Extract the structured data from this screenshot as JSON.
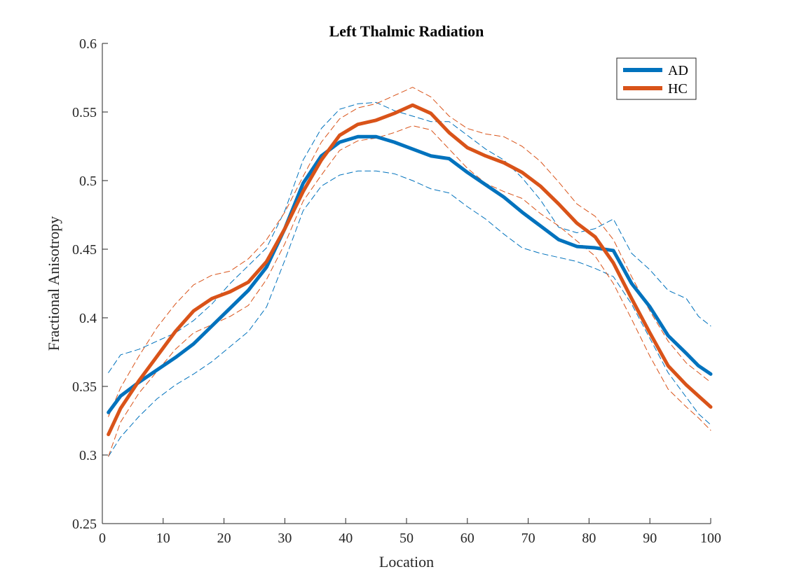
{
  "chart_data": {
    "type": "line",
    "title": "Left Thalmic Radiation",
    "xlabel": "Location",
    "ylabel": "Fractional Anisotropy",
    "xlim": [
      0,
      100
    ],
    "ylim": [
      0.25,
      0.6
    ],
    "xticks": [
      "0",
      "10",
      "20",
      "30",
      "40",
      "50",
      "60",
      "70",
      "80",
      "90",
      "100"
    ],
    "yticks": [
      "0.25",
      "0.3",
      "0.35",
      "0.4",
      "0.45",
      "0.5",
      "0.55",
      "0.6"
    ],
    "grid": false,
    "legend_position": "top-right",
    "x": [
      1,
      3,
      6,
      9,
      12,
      15,
      18,
      21,
      24,
      27,
      30,
      33,
      36,
      39,
      42,
      45,
      48,
      51,
      54,
      57,
      60,
      63,
      66,
      69,
      72,
      75,
      78,
      81,
      84,
      87,
      90,
      93,
      96,
      98,
      100
    ],
    "series": [
      {
        "name": "AD",
        "color": "#0072BD",
        "style": "solid",
        "values": [
          0.331,
          0.343,
          0.353,
          0.362,
          0.371,
          0.381,
          0.394,
          0.407,
          0.42,
          0.437,
          0.465,
          0.498,
          0.518,
          0.528,
          0.532,
          0.532,
          0.528,
          0.523,
          0.518,
          0.516,
          0.506,
          0.497,
          0.488,
          0.477,
          0.467,
          0.457,
          0.452,
          0.451,
          0.449,
          0.425,
          0.408,
          0.387,
          0.374,
          0.365,
          0.359
        ]
      },
      {
        "name": "HC",
        "color": "#D95319",
        "style": "solid",
        "values": [
          0.315,
          0.334,
          0.354,
          0.372,
          0.39,
          0.405,
          0.414,
          0.419,
          0.426,
          0.441,
          0.465,
          0.492,
          0.515,
          0.533,
          0.541,
          0.544,
          0.549,
          0.555,
          0.549,
          0.535,
          0.524,
          0.518,
          0.513,
          0.506,
          0.496,
          0.483,
          0.469,
          0.459,
          0.44,
          0.414,
          0.389,
          0.365,
          0.351,
          0.343,
          0.335
        ]
      },
      {
        "color": "#0072BD",
        "style": "dashed",
        "values": [
          0.36,
          0.373,
          0.377,
          0.383,
          0.389,
          0.398,
          0.41,
          0.425,
          0.438,
          0.451,
          0.478,
          0.515,
          0.538,
          0.552,
          0.556,
          0.557,
          0.551,
          0.547,
          0.543,
          0.543,
          0.533,
          0.523,
          0.515,
          0.502,
          0.486,
          0.466,
          0.462,
          0.465,
          0.472,
          0.447,
          0.435,
          0.42,
          0.414,
          0.401,
          0.394
        ]
      },
      {
        "color": "#0072BD",
        "style": "dashed",
        "values": [
          0.299,
          0.313,
          0.328,
          0.341,
          0.351,
          0.359,
          0.368,
          0.379,
          0.39,
          0.408,
          0.442,
          0.478,
          0.496,
          0.504,
          0.507,
          0.507,
          0.505,
          0.5,
          0.494,
          0.491,
          0.481,
          0.472,
          0.461,
          0.451,
          0.447,
          0.444,
          0.441,
          0.436,
          0.43,
          0.41,
          0.385,
          0.36,
          0.342,
          0.33,
          0.322
        ]
      },
      {
        "color": "#D95319",
        "style": "dashed",
        "values": [
          0.299,
          0.324,
          0.345,
          0.361,
          0.377,
          0.389,
          0.395,
          0.401,
          0.409,
          0.428,
          0.454,
          0.485,
          0.504,
          0.522,
          0.529,
          0.531,
          0.535,
          0.54,
          0.537,
          0.523,
          0.509,
          0.498,
          0.492,
          0.487,
          0.476,
          0.467,
          0.456,
          0.445,
          0.425,
          0.399,
          0.372,
          0.348,
          0.335,
          0.327,
          0.318
        ]
      },
      {
        "color": "#D95319",
        "style": "dashed",
        "values": [
          0.328,
          0.349,
          0.372,
          0.393,
          0.41,
          0.424,
          0.431,
          0.434,
          0.443,
          0.457,
          0.477,
          0.503,
          0.528,
          0.545,
          0.553,
          0.556,
          0.562,
          0.568,
          0.561,
          0.547,
          0.538,
          0.534,
          0.532,
          0.525,
          0.514,
          0.499,
          0.483,
          0.474,
          0.457,
          0.43,
          0.405,
          0.383,
          0.367,
          0.36,
          0.353
        ]
      }
    ]
  }
}
